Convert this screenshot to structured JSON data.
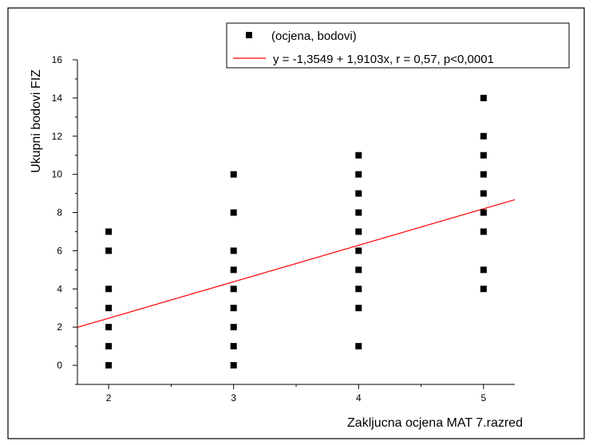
{
  "chart_data": {
    "type": "scatter",
    "xlabel": "Zakljucna ocjena MAT 7.razred",
    "ylabel": "Ukupni bodovi FIZ",
    "xlim": [
      1.75,
      5.25
    ],
    "ylim": [
      -1,
      16
    ],
    "x_ticks": [
      2,
      3,
      4,
      5
    ],
    "y_ticks": [
      0,
      2,
      4,
      6,
      8,
      10,
      12,
      14,
      16
    ],
    "grid": false,
    "legend_position": "top-right",
    "series": [
      {
        "name": "(ocjena, bodovi)",
        "type": "scatter",
        "marker": "square",
        "color": "#000000",
        "points": [
          [
            2,
            0
          ],
          [
            2,
            1
          ],
          [
            2,
            2
          ],
          [
            2,
            3
          ],
          [
            2,
            4
          ],
          [
            2,
            6
          ],
          [
            2,
            7
          ],
          [
            3,
            0
          ],
          [
            3,
            1
          ],
          [
            3,
            2
          ],
          [
            3,
            3
          ],
          [
            3,
            4
          ],
          [
            3,
            5
          ],
          [
            3,
            6
          ],
          [
            3,
            8
          ],
          [
            3,
            10
          ],
          [
            4,
            1
          ],
          [
            4,
            3
          ],
          [
            4,
            4
          ],
          [
            4,
            5
          ],
          [
            4,
            6
          ],
          [
            4,
            7
          ],
          [
            4,
            8
          ],
          [
            4,
            9
          ],
          [
            4,
            10
          ],
          [
            4,
            11
          ],
          [
            5,
            4
          ],
          [
            5,
            5
          ],
          [
            5,
            7
          ],
          [
            5,
            8
          ],
          [
            5,
            9
          ],
          [
            5,
            10
          ],
          [
            5,
            11
          ],
          [
            5,
            12
          ],
          [
            5,
            14
          ]
        ]
      },
      {
        "name": "y = -1,3549 + 1,9103x, r = 0,57, p<0,0001",
        "type": "line",
        "color": "#ff0000",
        "intercept": -1.3549,
        "slope": 1.9103,
        "x_range": [
          1.75,
          5.25
        ]
      }
    ]
  }
}
